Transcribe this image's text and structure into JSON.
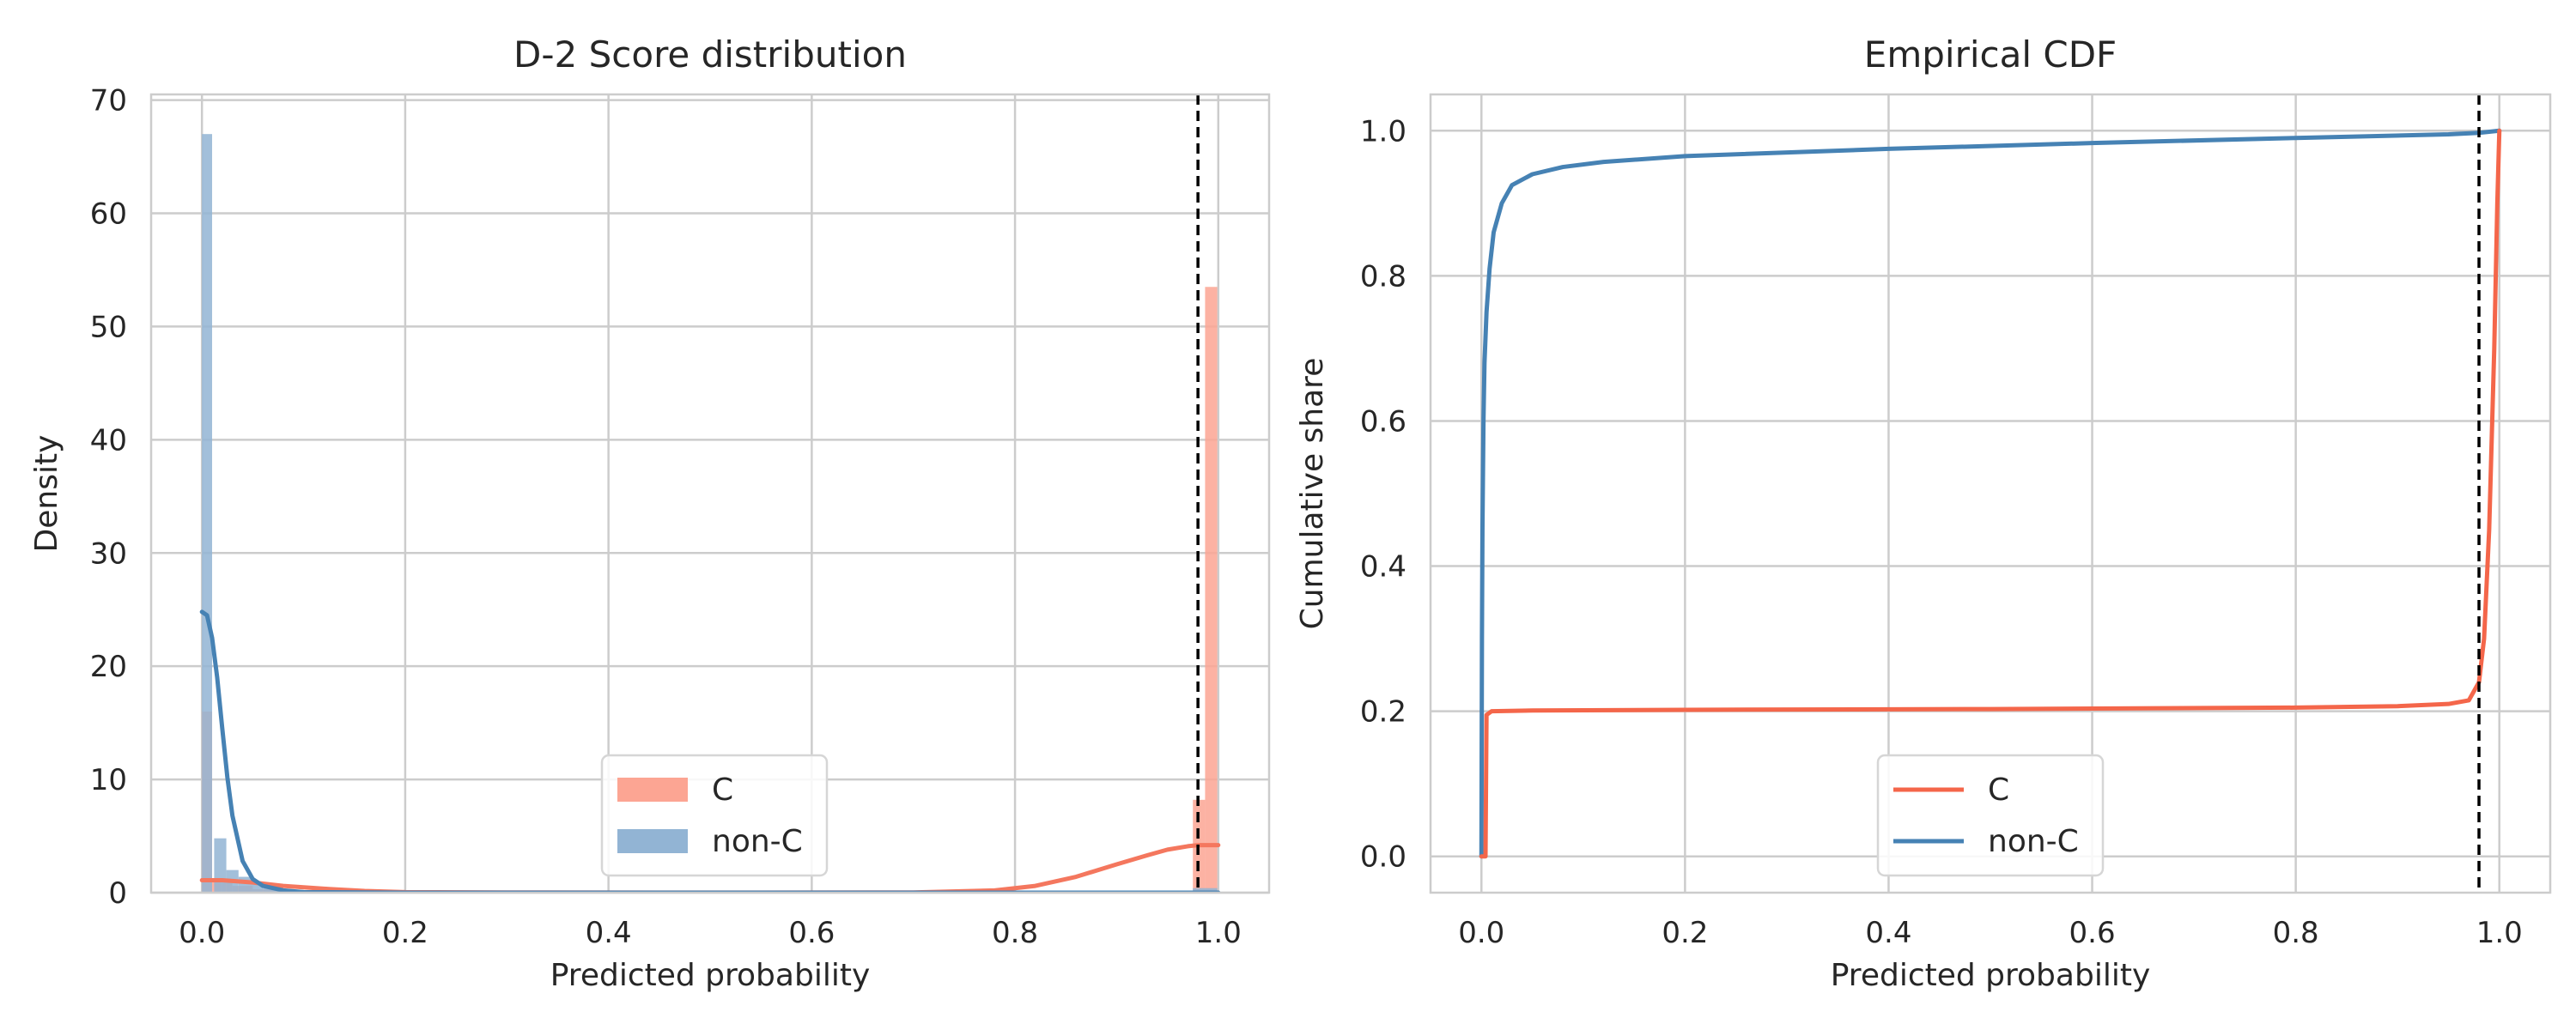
{
  "chart_data": [
    {
      "type": "histogram",
      "title": "D-2  Score distribution",
      "xlabel": "Predicted probability",
      "ylabel": "Density",
      "xlim": [
        -0.05,
        1.05
      ],
      "ylim": [
        0,
        70.5
      ],
      "xticks": [
        "0.0",
        "0.2",
        "0.4",
        "0.6",
        "0.8",
        "1.0"
      ],
      "yticks": [
        "0",
        "10",
        "20",
        "30",
        "40",
        "50",
        "60",
        "70"
      ],
      "grid": true,
      "legend": {
        "position": "lower-center",
        "entries": [
          "C",
          "non-C"
        ]
      },
      "threshold": 0.98,
      "series": [
        {
          "name": "C",
          "color": "#f4775e",
          "bar_color": "#fca593",
          "bins": [
            {
              "x0": 0.0,
              "x1": 0.01,
              "height": 16.0
            },
            {
              "x0": 0.01,
              "x1": 0.02,
              "height": 1.2
            },
            {
              "x0": 0.02,
              "x1": 0.03,
              "height": 0.9
            },
            {
              "x0": 0.03,
              "x1": 0.05,
              "height": 0.6
            },
            {
              "x0": 0.05,
              "x1": 0.08,
              "height": 0.3
            },
            {
              "x0": 0.975,
              "x1": 0.987,
              "height": 8.2
            },
            {
              "x0": 0.987,
              "x1": 0.999,
              "height": 53.5
            }
          ],
          "kde": {
            "x": [
              0.0,
              0.02,
              0.05,
              0.08,
              0.12,
              0.16,
              0.2,
              0.3,
              0.5,
              0.7,
              0.78,
              0.82,
              0.86,
              0.9,
              0.93,
              0.95,
              0.97,
              0.98,
              1.0
            ],
            "y": [
              1.1,
              1.1,
              0.9,
              0.6,
              0.35,
              0.15,
              0.05,
              0.02,
              0.01,
              0.02,
              0.2,
              0.6,
              1.4,
              2.5,
              3.3,
              3.8,
              4.1,
              4.2,
              4.2
            ]
          }
        },
        {
          "name": "non-C",
          "color": "#4682b4",
          "bar_color": "#92b4d4",
          "bins": [
            {
              "x0": 0.0,
              "x1": 0.01,
              "height": 67.0
            },
            {
              "x0": 0.012,
              "x1": 0.024,
              "height": 4.8
            },
            {
              "x0": 0.024,
              "x1": 0.036,
              "height": 2.0
            },
            {
              "x0": 0.036,
              "x1": 0.048,
              "height": 1.4
            },
            {
              "x0": 0.048,
              "x1": 0.06,
              "height": 0.8
            },
            {
              "x0": 0.06,
              "x1": 0.08,
              "height": 0.4
            },
            {
              "x0": 0.975,
              "x1": 0.999,
              "height": 0.4
            }
          ],
          "kde": {
            "x": [
              0.0,
              0.005,
              0.01,
              0.015,
              0.02,
              0.025,
              0.03,
              0.04,
              0.05,
              0.06,
              0.08,
              0.1,
              0.2,
              1.0
            ],
            "y": [
              24.8,
              24.5,
              22.5,
              19.0,
              14.5,
              10.2,
              6.8,
              2.8,
              1.2,
              0.6,
              0.2,
              0.05,
              0.0,
              0.0
            ]
          }
        }
      ]
    },
    {
      "type": "line",
      "title": "Empirical CDF",
      "xlabel": "Predicted probability",
      "ylabel": "Cumulative share",
      "xlim": [
        -0.05,
        1.05
      ],
      "ylim": [
        -0.05,
        1.05
      ],
      "xticks": [
        "0.0",
        "0.2",
        "0.4",
        "0.6",
        "0.8",
        "1.0"
      ],
      "yticks": [
        "0.0",
        "0.2",
        "0.4",
        "0.6",
        "0.8",
        "1.0"
      ],
      "grid": true,
      "legend": {
        "position": "lower-center",
        "entries": [
          "C",
          "non-C"
        ]
      },
      "threshold": 0.98,
      "series": [
        {
          "name": "C",
          "color": "#f4664a",
          "x": [
            0.0,
            0.004,
            0.005,
            0.01,
            0.05,
            0.2,
            0.5,
            0.8,
            0.9,
            0.95,
            0.97,
            0.98,
            0.985,
            0.99,
            0.995,
            0.998,
            1.0
          ],
          "y": [
            0.0,
            0.0,
            0.195,
            0.2,
            0.201,
            0.202,
            0.203,
            0.205,
            0.207,
            0.21,
            0.215,
            0.24,
            0.3,
            0.45,
            0.7,
            0.9,
            1.0
          ]
        },
        {
          "name": "non-C",
          "color": "#4682b4",
          "x": [
            0.0,
            0.0005,
            0.001,
            0.002,
            0.003,
            0.005,
            0.008,
            0.012,
            0.02,
            0.03,
            0.05,
            0.08,
            0.12,
            0.2,
            0.4,
            0.6,
            0.8,
            0.95,
            0.98,
            1.0
          ],
          "y": [
            0.0,
            0.3,
            0.45,
            0.6,
            0.68,
            0.75,
            0.81,
            0.86,
            0.9,
            0.925,
            0.94,
            0.95,
            0.957,
            0.965,
            0.975,
            0.983,
            0.99,
            0.995,
            0.997,
            1.0
          ]
        }
      ]
    }
  ]
}
